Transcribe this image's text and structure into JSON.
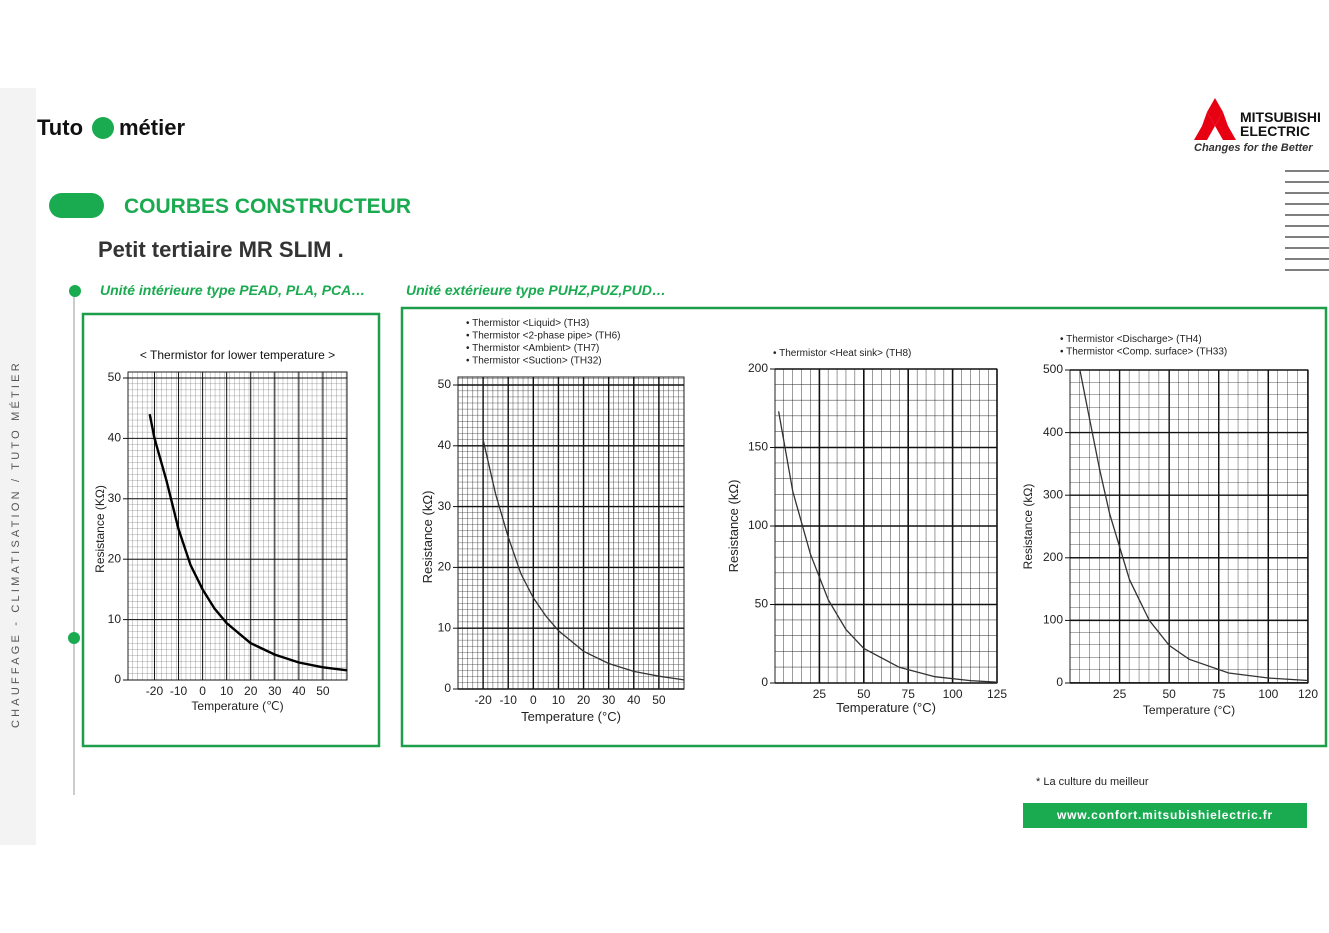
{
  "header": {
    "brand_left": "Tuto",
    "brand_right": "métier",
    "section": "COURBES CONSTRUCTEUR",
    "title": "Petit tertiaire MR SLIM .",
    "side_text": "CHAUFFAGE - CLIMATISATION / TUTO MÉTIER"
  },
  "logo": {
    "line1": "MITSUBISHI",
    "line2": "ELECTRIC",
    "tagline": "Changes for the Better"
  },
  "subtitles": {
    "indoor": "Unité intérieure type PEAD, PLA, PCA…",
    "outdoor": "Unité extérieure type PUHZ,PUZ,PUD…"
  },
  "footer": {
    "note": "* La culture du meilleur",
    "url": "www.confort.mitsubishielectric.fr"
  },
  "chart_data": [
    {
      "type": "line",
      "title": "< Thermistor for lower temperature >",
      "x_label": "Temperature (℃)",
      "y_label": "Resistance (KΩ)",
      "x": [
        -22,
        -20,
        -15,
        -10,
        -5,
        0,
        5,
        10,
        20,
        30,
        40,
        50,
        60
      ],
      "series": [
        {
          "color": "#000000",
          "values": [
            44,
            40,
            33,
            25,
            19,
            15,
            11.8,
            9.4,
            6.1,
            4.2,
            2.9,
            2.1,
            1.6
          ]
        }
      ],
      "xlim": [
        -31,
        60
      ],
      "xticks": [
        -20,
        -10,
        0,
        10,
        20,
        30,
        40,
        50
      ],
      "ylim": [
        0,
        50
      ],
      "yticks": [
        0,
        10,
        20,
        30,
        40,
        50
      ],
      "grid": true
    },
    {
      "type": "line",
      "annotations": [
        "• Thermistor <Liquid> (TH3)",
        "• Thermistor <2-phase pipe> (TH6)",
        "• Thermistor <Ambient> (TH7)",
        "• Thermistor <Suction> (TH32)"
      ],
      "x_label": "Temperature (°C)",
      "y_label": "Resistance (kΩ)",
      "x": [
        -20,
        -15,
        -10,
        -5,
        0,
        5,
        10,
        20,
        30,
        40,
        50,
        60
      ],
      "series": [
        {
          "color": "#333333",
          "values": [
            41,
            32,
            25,
            19,
            15,
            12,
            9.6,
            6.2,
            4.2,
            2.9,
            2.1,
            1.5
          ]
        }
      ],
      "xlim": [
        -30,
        60
      ],
      "xticks": [
        -20,
        -10,
        0,
        10,
        20,
        30,
        40,
        50
      ],
      "ylim": [
        0,
        50
      ],
      "yticks": [
        0,
        10,
        20,
        30,
        40,
        50
      ],
      "grid": true
    },
    {
      "type": "line",
      "annotations": [
        "• Thermistor <Heat sink> (TH8)"
      ],
      "x_label": "Temperature (°C)",
      "y_label": "Resistance (kΩ)",
      "x": [
        2,
        10,
        20,
        30,
        40,
        50,
        70,
        90,
        110,
        125
      ],
      "series": [
        {
          "color": "#333333",
          "values": [
            173,
            122,
            82,
            53,
            34,
            22,
            10,
            4,
            1.5,
            0.5
          ]
        }
      ],
      "xlim": [
        0,
        125
      ],
      "xticks": [
        25,
        50,
        75,
        100,
        125
      ],
      "ylim": [
        0,
        200
      ],
      "yticks": [
        0,
        50,
        100,
        150,
        200
      ],
      "grid": true
    },
    {
      "type": "line",
      "annotations": [
        "• Thermistor <Discharge> (TH4)",
        "• Thermistor <Comp. surface> (TH33)"
      ],
      "x_label": "Temperature (°C)",
      "y_label": "Resistance (kΩ)",
      "x": [
        5,
        10,
        15,
        20,
        30,
        40,
        50,
        60,
        80,
        100,
        120
      ],
      "series": [
        {
          "color": "#333333",
          "values": [
            500,
            420,
            340,
            270,
            165,
            100,
            60,
            38,
            16,
            8,
            4
          ]
        }
      ],
      "xlim": [
        0,
        120
      ],
      "xticks": [
        25,
        50,
        75,
        100,
        120
      ],
      "ylim": [
        0,
        500
      ],
      "yticks": [
        0,
        100,
        200,
        300,
        400,
        500
      ],
      "grid": true
    }
  ]
}
